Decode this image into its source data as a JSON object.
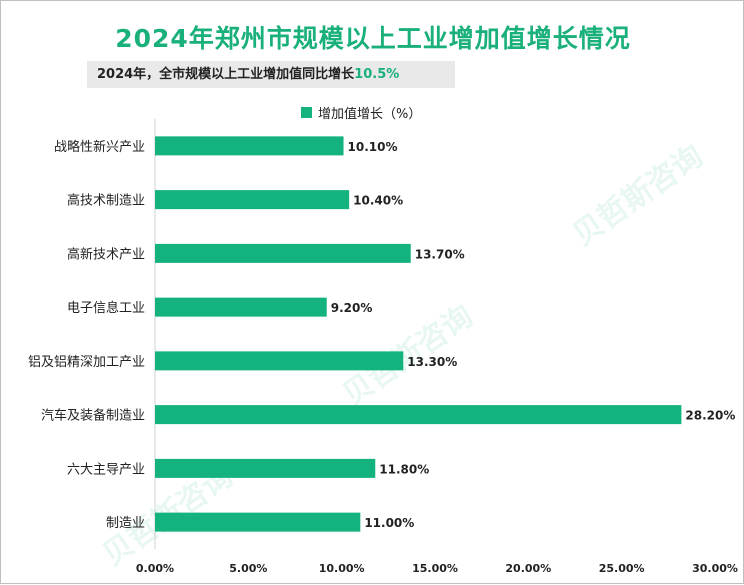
{
  "title": "2024年郑州市规模以上工业增加值增长情况",
  "subtitle": {
    "text": "2024年，全市规模以上工业增加值同比增长",
    "highlight": "10.5%"
  },
  "watermark": "贝哲斯咨询",
  "colors": {
    "bar": "#13b27f",
    "title": "#1ab07a"
  },
  "chart_data": {
    "type": "bar",
    "orientation": "horizontal",
    "categories": [
      "战略性新兴产业",
      "高技术制造业",
      "高新技术产业",
      "电子信息工业",
      "铝及铝精深加工产业",
      "汽车及装备制造业",
      "六大主导产业",
      "制造业"
    ],
    "series": [
      {
        "name": "增加值增长（%）",
        "values": [
          10.1,
          10.4,
          13.7,
          9.2,
          13.3,
          28.2,
          11.8,
          11.0
        ],
        "labels": [
          "10.10%",
          "10.40%",
          "13.70%",
          "9.20%",
          "13.30%",
          "28.20%",
          "11.80%",
          "11.00%"
        ]
      }
    ],
    "xlim": [
      0,
      30
    ],
    "xticks": [
      0,
      5,
      10,
      15,
      20,
      25,
      30
    ],
    "xtick_labels": [
      "0.00%",
      "5.00%",
      "10.00%",
      "15.00%",
      "20.00%",
      "25.00%",
      "30.00%"
    ],
    "legend": "top-center",
    "grid": false
  }
}
